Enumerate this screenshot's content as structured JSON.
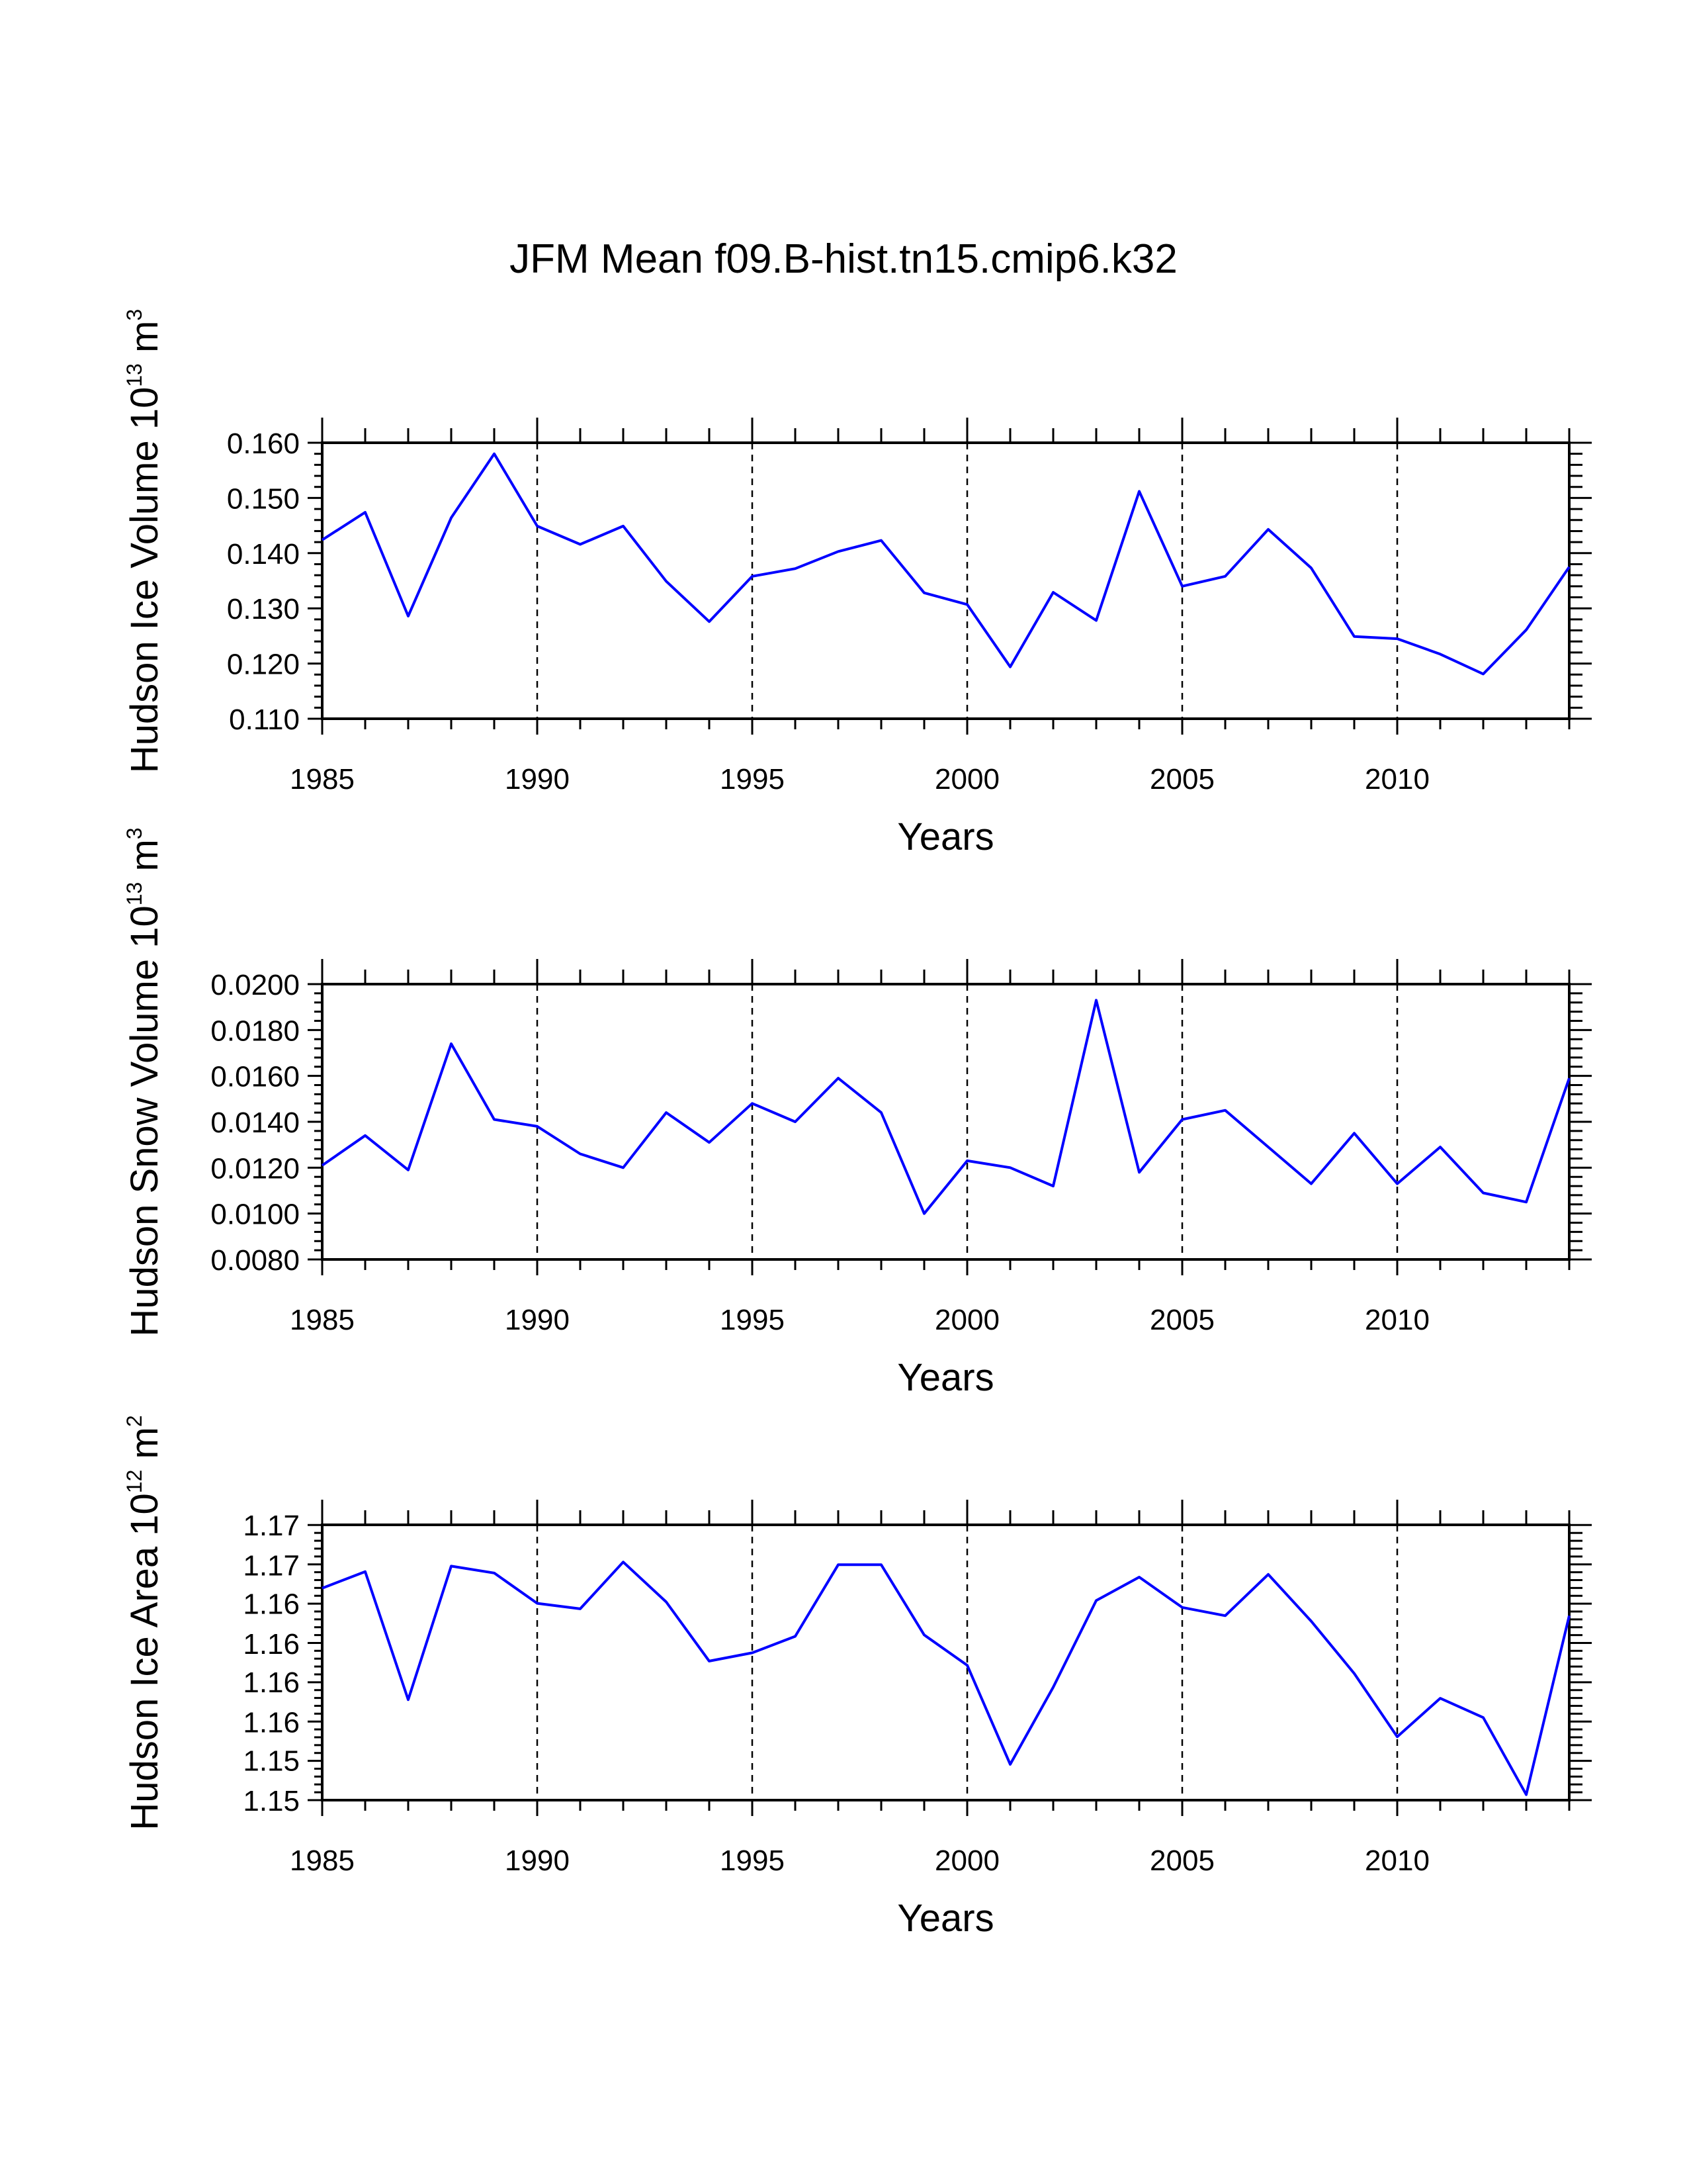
{
  "figure": {
    "title": "JFM Mean f09.B-hist.tn15.cmip6.k32"
  },
  "chart_data": [
    {
      "type": "line",
      "name": "ice-volume",
      "ylabel": "Hudson Ice Volume 10",
      "yunit_exp": "13",
      "yunit_base": "m",
      "yunit_pow": "3",
      "xlabel": "Years",
      "xlim": [
        1985,
        2014
      ],
      "ylim": [
        0.11,
        0.16
      ],
      "xticks": [
        1985,
        1990,
        1995,
        2000,
        2005,
        2010
      ],
      "yticks": [
        0.11,
        0.12,
        0.13,
        0.14,
        0.15,
        0.16
      ],
      "ytick_labels": [
        "0.110",
        "0.120",
        "0.130",
        "0.140",
        "0.150",
        "0.160"
      ],
      "ymajor_step": 0.01,
      "yminor_step": 0.002,
      "grid_x": [
        1990,
        1995,
        2000,
        2005,
        2010
      ],
      "x": [
        1985,
        1986,
        1987,
        1988,
        1989,
        1990,
        1991,
        1992,
        1993,
        1994,
        1995,
        1996,
        1997,
        1998,
        1999,
        2000,
        2001,
        2002,
        2003,
        2004,
        2005,
        2006,
        2007,
        2008,
        2009,
        2010,
        2011,
        2012,
        2013,
        2014
      ],
      "series": [
        {
          "name": "Hudson Ice Volume",
          "color": "#0000ff",
          "values": [
            0.1424,
            0.1474,
            0.1286,
            0.1464,
            0.158,
            0.1449,
            0.1416,
            0.1449,
            0.1349,
            0.1276,
            0.1358,
            0.1372,
            0.1403,
            0.1423,
            0.1328,
            0.1307,
            0.1194,
            0.1329,
            0.1278,
            0.1512,
            0.134,
            0.1358,
            0.1443,
            0.1373,
            0.1249,
            0.1245,
            0.1217,
            0.1181,
            0.1261,
            0.1375
          ]
        }
      ]
    },
    {
      "type": "line",
      "name": "snow-volume",
      "ylabel": "Hudson Snow Volume 10",
      "yunit_exp": "13",
      "yunit_base": "m",
      "yunit_pow": "3",
      "xlabel": "Years",
      "xlim": [
        1985,
        2014
      ],
      "ylim": [
        0.008,
        0.02
      ],
      "xticks": [
        1985,
        1990,
        1995,
        2000,
        2005,
        2010
      ],
      "yticks": [
        0.008,
        0.01,
        0.012,
        0.014,
        0.016,
        0.018,
        0.02
      ],
      "ytick_labels": [
        "0.0080",
        "0.0100",
        "0.0120",
        "0.0140",
        "0.0160",
        "0.0180",
        "0.0200"
      ],
      "ymajor_step": 0.002,
      "yminor_step": 0.0004,
      "grid_x": [
        1990,
        1995,
        2000,
        2005,
        2010
      ],
      "x": [
        1985,
        1986,
        1987,
        1988,
        1989,
        1990,
        1991,
        1992,
        1993,
        1994,
        1995,
        1996,
        1997,
        1998,
        1999,
        2000,
        2001,
        2002,
        2003,
        2004,
        2005,
        2006,
        2007,
        2008,
        2009,
        2010,
        2011,
        2012,
        2013,
        2014
      ],
      "series": [
        {
          "name": "Hudson Snow Volume",
          "color": "#0000ff",
          "values": [
            0.0121,
            0.0134,
            0.0119,
            0.0174,
            0.0141,
            0.0138,
            0.0126,
            0.012,
            0.0144,
            0.0131,
            0.0148,
            0.014,
            0.0159,
            0.0144,
            0.01,
            0.0123,
            0.012,
            0.0112,
            0.0193,
            0.0118,
            0.0141,
            0.0145,
            0.0129,
            0.0113,
            0.0135,
            0.0113,
            0.0129,
            0.0109,
            0.0105,
            0.0159
          ]
        }
      ]
    },
    {
      "type": "line",
      "name": "ice-area",
      "ylabel": "Hudson Ice Area 10",
      "yunit_exp": "12",
      "yunit_base": "m",
      "yunit_pow": "2",
      "xlabel": "Years",
      "xlim": [
        1985,
        2014
      ],
      "ylim": [
        1.15,
        1.17
      ],
      "xticks": [
        1985,
        1990,
        1995,
        2000,
        2005,
        2010
      ],
      "yticks": [
        1.15,
        1.1529,
        1.1557,
        1.1586,
        1.1614,
        1.1643,
        1.1671,
        1.17
      ],
      "ytick_labels": [
        "1.15",
        "1.15",
        "1.16",
        "1.16",
        "1.16",
        "1.16",
        "1.17",
        "1.17"
      ],
      "ymajor_step": 0.002857,
      "yminor_step": 0.000571,
      "grid_x": [
        1990,
        1995,
        2000,
        2005,
        2010
      ],
      "x": [
        1985,
        1986,
        1987,
        1988,
        1989,
        1990,
        1991,
        1992,
        1993,
        1994,
        1995,
        1996,
        1997,
        1998,
        1999,
        2000,
        2001,
        2002,
        2003,
        2004,
        2005,
        2006,
        2007,
        2008,
        2009,
        2010,
        2011,
        2012,
        2013,
        2014
      ],
      "series": [
        {
          "name": "Hudson Ice Area",
          "color": "#0000ff",
          "values": [
            1.1654,
            1.1666,
            1.1573,
            1.167,
            1.1665,
            1.1643,
            1.1639,
            1.1673,
            1.1644,
            1.1601,
            1.1607,
            1.1619,
            1.1671,
            1.1671,
            1.162,
            1.1598,
            1.1526,
            1.1582,
            1.1645,
            1.1662,
            1.164,
            1.1634,
            1.1664,
            1.163,
            1.1592,
            1.1546,
            1.1574,
            1.156,
            1.1504,
            1.1634
          ]
        }
      ]
    }
  ]
}
